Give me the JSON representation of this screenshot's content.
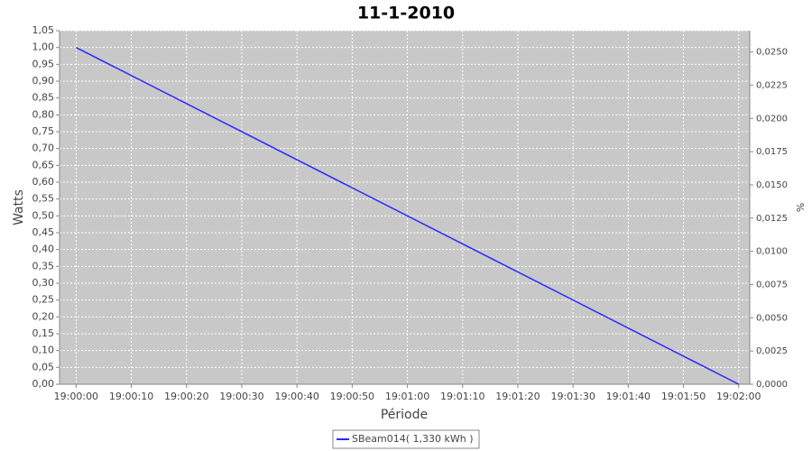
{
  "chart_data": {
    "type": "line",
    "title": "11-1-2010",
    "xlabel": "Période",
    "ylabel": "Watts",
    "y2label": "%",
    "x": [
      "19:00:00",
      "19:02:00"
    ],
    "series": [
      {
        "name": "SBeam014( 1,330 kWh )",
        "color": "#2a2aff",
        "values": [
          1.0,
          0.0
        ]
      }
    ],
    "xlim": [
      "18:59:57",
      "19:02:02"
    ],
    "xticks": [
      "19:00:00",
      "19:00:10",
      "19:00:20",
      "19:00:30",
      "19:00:40",
      "19:00:50",
      "19:01:00",
      "19:01:10",
      "19:01:20",
      "19:01:30",
      "19:01:40",
      "19:01:50",
      "19:02:00"
    ],
    "ylim": [
      0,
      1.05
    ],
    "yticks": [
      {
        "value": 0,
        "label": "0,00"
      },
      {
        "value": 0.05,
        "label": "0,05"
      },
      {
        "value": 0.1,
        "label": "0,10"
      },
      {
        "value": 0.15,
        "label": "0,15"
      },
      {
        "value": 0.2,
        "label": "0,20"
      },
      {
        "value": 0.25,
        "label": "0,25"
      },
      {
        "value": 0.3,
        "label": "0,30"
      },
      {
        "value": 0.35,
        "label": "0,35"
      },
      {
        "value": 0.4,
        "label": "0,40"
      },
      {
        "value": 0.45,
        "label": "0,45"
      },
      {
        "value": 0.5,
        "label": "0,50"
      },
      {
        "value": 0.55,
        "label": "0,55"
      },
      {
        "value": 0.6,
        "label": "0,60"
      },
      {
        "value": 0.65,
        "label": "0,65"
      },
      {
        "value": 0.7,
        "label": "0,70"
      },
      {
        "value": 0.75,
        "label": "0,75"
      },
      {
        "value": 0.8,
        "label": "0,80"
      },
      {
        "value": 0.85,
        "label": "0,85"
      },
      {
        "value": 0.9,
        "label": "0,90"
      },
      {
        "value": 0.95,
        "label": "0,95"
      },
      {
        "value": 1.0,
        "label": "1,00"
      },
      {
        "value": 1.05,
        "label": "1,05"
      }
    ],
    "y2lim": [
      0,
      0.0266
    ],
    "y2ticks": [
      {
        "value": 0,
        "label": "0,0000"
      },
      {
        "value": 0.0025,
        "label": "0,0025"
      },
      {
        "value": 0.005,
        "label": "0,0050"
      },
      {
        "value": 0.0075,
        "label": "0,0075"
      },
      {
        "value": 0.01,
        "label": "0,0100"
      },
      {
        "value": 0.0125,
        "label": "0,0125"
      },
      {
        "value": 0.015,
        "label": "0,0150"
      },
      {
        "value": 0.0175,
        "label": "0,0175"
      },
      {
        "value": 0.02,
        "label": "0,0200"
      },
      {
        "value": 0.0225,
        "label": "0,0225"
      },
      {
        "value": 0.025,
        "label": "0,0250"
      }
    ],
    "grid": true,
    "legend": "bottom"
  }
}
